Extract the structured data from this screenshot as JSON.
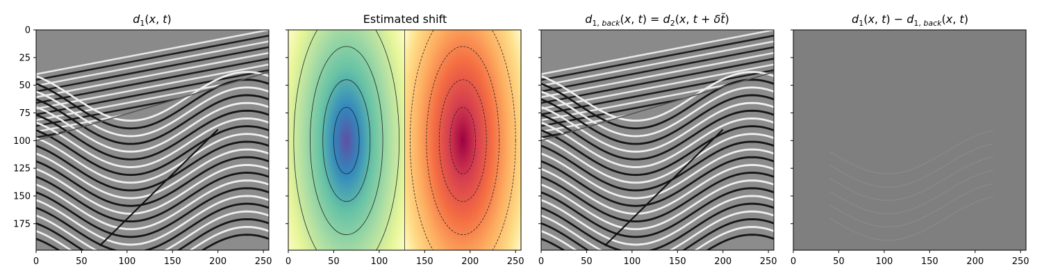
{
  "chart_data": [
    {
      "type": "heatmap",
      "title": "d_1(x,t)",
      "colormap": "gray",
      "xlim": [
        0,
        256
      ],
      "ylim": [
        199,
        0
      ],
      "xticks": [
        0,
        50,
        100,
        150,
        200,
        250
      ],
      "yticks": [
        0,
        25,
        50,
        75,
        100,
        125,
        150,
        175
      ],
      "shared_y": true,
      "show_ytick_labels": true
    },
    {
      "type": "heatmap",
      "title": "Estimated shift",
      "colormap": "Spectral_r",
      "xlim": [
        0,
        256
      ],
      "ylim": [
        199,
        0
      ],
      "xticks": [
        0,
        50,
        100,
        150,
        200,
        250
      ],
      "yticks": [
        0,
        25,
        50,
        75,
        100,
        125,
        150,
        175
      ],
      "shared_y": true,
      "show_ytick_labels": false,
      "contours": true,
      "zero_line_x": 128,
      "extrema": [
        {
          "sign": "min",
          "x": 64,
          "y": 100
        },
        {
          "sign": "max",
          "x": 192,
          "y": 100
        }
      ]
    },
    {
      "type": "heatmap",
      "title": "d_{1,back}(x,t) = d_2(x, t + δt̃)",
      "colormap": "gray",
      "xlim": [
        0,
        256
      ],
      "ylim": [
        199,
        0
      ],
      "xticks": [
        0,
        50,
        100,
        150,
        200,
        250
      ],
      "yticks": [
        0,
        25,
        50,
        75,
        100,
        125,
        150,
        175
      ],
      "shared_y": true,
      "show_ytick_labels": false
    },
    {
      "type": "heatmap",
      "title": "d_1(x,t) − d_{1,back}(x,t)",
      "colormap": "gray",
      "xlim": [
        0,
        256
      ],
      "ylim": [
        199,
        0
      ],
      "xticks": [
        0,
        50,
        100,
        150,
        200,
        250
      ],
      "yticks": [
        0,
        25,
        50,
        75,
        100,
        125,
        150,
        175
      ],
      "shared_y": true,
      "show_ytick_labels": false
    }
  ],
  "colors": {
    "background": "#ffffff",
    "axis": "#000000",
    "residual_gray": "#7f7f7f"
  }
}
